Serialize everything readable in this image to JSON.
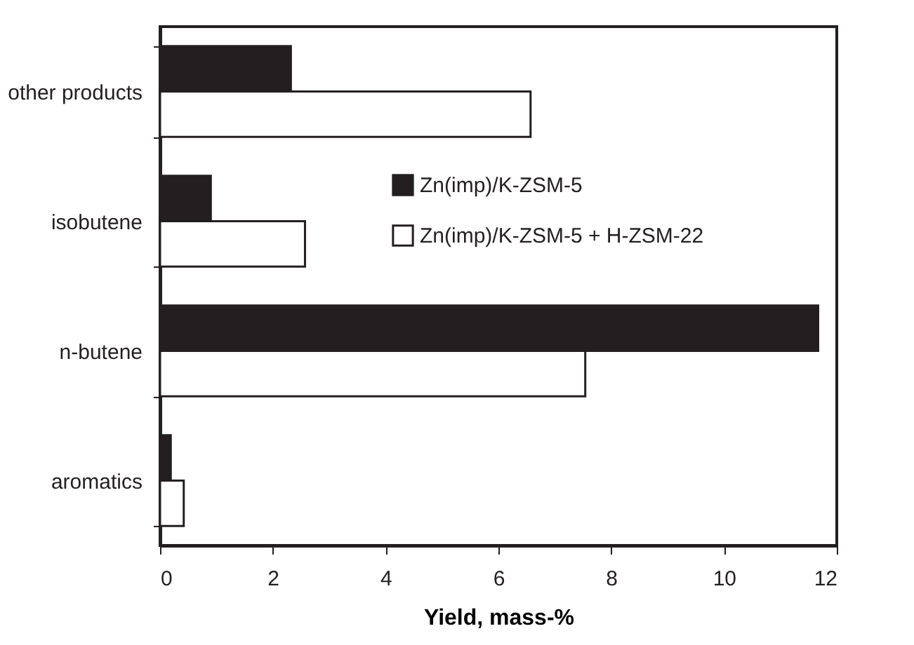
{
  "chart_data": {
    "type": "bar",
    "orientation": "horizontal",
    "xlabel": "Yield, mass-%",
    "categories": [
      "other products",
      "isobutene",
      "n-butene",
      "aromatics"
    ],
    "series": [
      {
        "name": "Zn(imp)/K-ZSM-5",
        "color": "#231f20",
        "values": [
          2.32,
          0.9,
          11.67,
          0.19
        ]
      },
      {
        "name": "Zn(imp)/K-ZSM-5 + H-ZSM-22",
        "color": "#ffffff",
        "values": [
          6.57,
          2.57,
          7.54,
          0.42
        ]
      }
    ],
    "xlim": [
      0,
      12
    ],
    "xticks": [
      0,
      2,
      4,
      6,
      8,
      10,
      12
    ],
    "grid": false,
    "legend": "right"
  }
}
